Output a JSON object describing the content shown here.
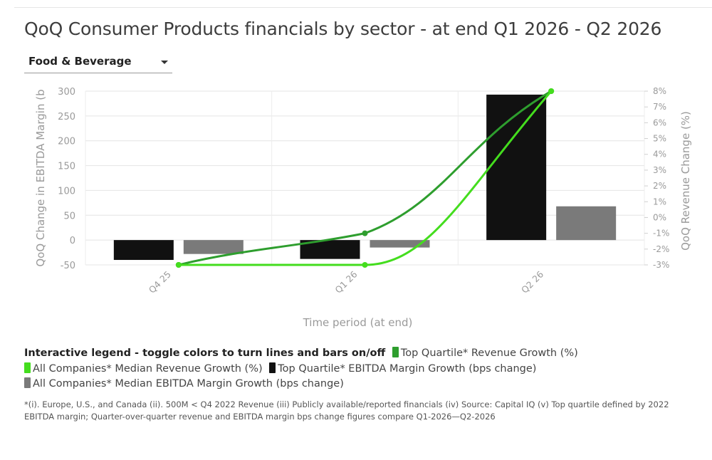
{
  "title": "QoQ Consumer Products financials by sector - at end Q1 2026 - Q2 2026",
  "sector_select": {
    "selected": "Food & Beverage"
  },
  "legend": {
    "title": "Interactive legend - toggle colors to turn lines and bars on/off",
    "items": [
      {
        "label": "Top Quartile* Revenue Growth (%)",
        "color": "#2e9e2e"
      },
      {
        "label": "All Companies* Median Revenue Growth (%)",
        "color": "#44dd1e"
      },
      {
        "label": "Top Quartile* EBITDA Margin Growth (bps change)",
        "color": "#111111"
      },
      {
        "label": "All Companies* Median EBITDA Margin Growth (bps change)",
        "color": "#7a7a7a"
      }
    ]
  },
  "footnote": "*(i). Europe, U.S., and Canada (ii). 500M < Q4 2022 Revenue (iii) Publicly available/reported financials (iv) Source: Capital IQ (v) Top quartile defined by 2022 EBITDA margin; Quarter-over-quarter revenue and EBITDA margin bps change figures compare Q1-2026—Q2-2026",
  "chart_data": {
    "type": "bar",
    "categories": [
      "Q4 25",
      "Q1 26",
      "Q2 26"
    ],
    "xlabel": "Time period (at end)",
    "ylabel_left": "QoQ Change in EBITDA Margin (b",
    "ylabel_right": "QoQ Revenue Change (%)",
    "ylim_left": [
      -50,
      300
    ],
    "yticks_left": [
      -50,
      0,
      50,
      100,
      150,
      200,
      250,
      300
    ],
    "ylim_right": [
      -3,
      8
    ],
    "yticks_right": [
      "-3%",
      "-2%",
      "-1%",
      "0%",
      "1%",
      "2%",
      "3%",
      "4%",
      "5%",
      "6%",
      "7%",
      "8%"
    ],
    "grid": true,
    "bars": [
      {
        "name": "Top Quartile* EBITDA Margin Growth (bps change)",
        "color": "#111111",
        "values": [
          -40,
          -38,
          293
        ]
      },
      {
        "name": "All Companies* Median EBITDA Margin Growth (bps change)",
        "color": "#7a7a7a",
        "values": [
          -28,
          -15,
          68
        ]
      }
    ],
    "lines": [
      {
        "name": "Top Quartile* Revenue Growth (%)",
        "color": "#2e9e2e",
        "values": [
          -3.0,
          -1.0,
          8.0
        ]
      },
      {
        "name": "All Companies* Median Revenue Growth (%)",
        "color": "#44dd1e",
        "values": [
          -3.0,
          -3.0,
          8.0
        ]
      }
    ]
  }
}
